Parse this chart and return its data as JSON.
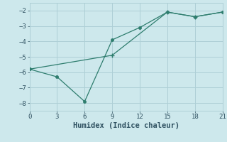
{
  "line1_x": [
    0,
    3,
    6,
    9,
    12,
    15,
    18,
    21
  ],
  "line1_y": [
    -5.8,
    -6.3,
    -7.9,
    -3.9,
    -3.1,
    -2.1,
    -2.4,
    -2.1
  ],
  "line2_x": [
    0,
    9,
    15,
    18,
    21
  ],
  "line2_y": [
    -5.8,
    -4.9,
    -2.1,
    -2.4,
    -2.1
  ],
  "color": "#2e7d6e",
  "xlabel": "Humidex (Indice chaleur)",
  "xlim": [
    0,
    21
  ],
  "ylim": [
    -8.5,
    -1.5
  ],
  "xticks": [
    0,
    3,
    6,
    9,
    12,
    15,
    18,
    21
  ],
  "yticks": [
    -8,
    -7,
    -6,
    -5,
    -4,
    -3,
    -2
  ],
  "bg_color": "#cde8ec",
  "grid_color": "#aecfd6",
  "font_color": "#2e5060",
  "tick_fontsize": 6.5,
  "xlabel_fontsize": 7.5
}
